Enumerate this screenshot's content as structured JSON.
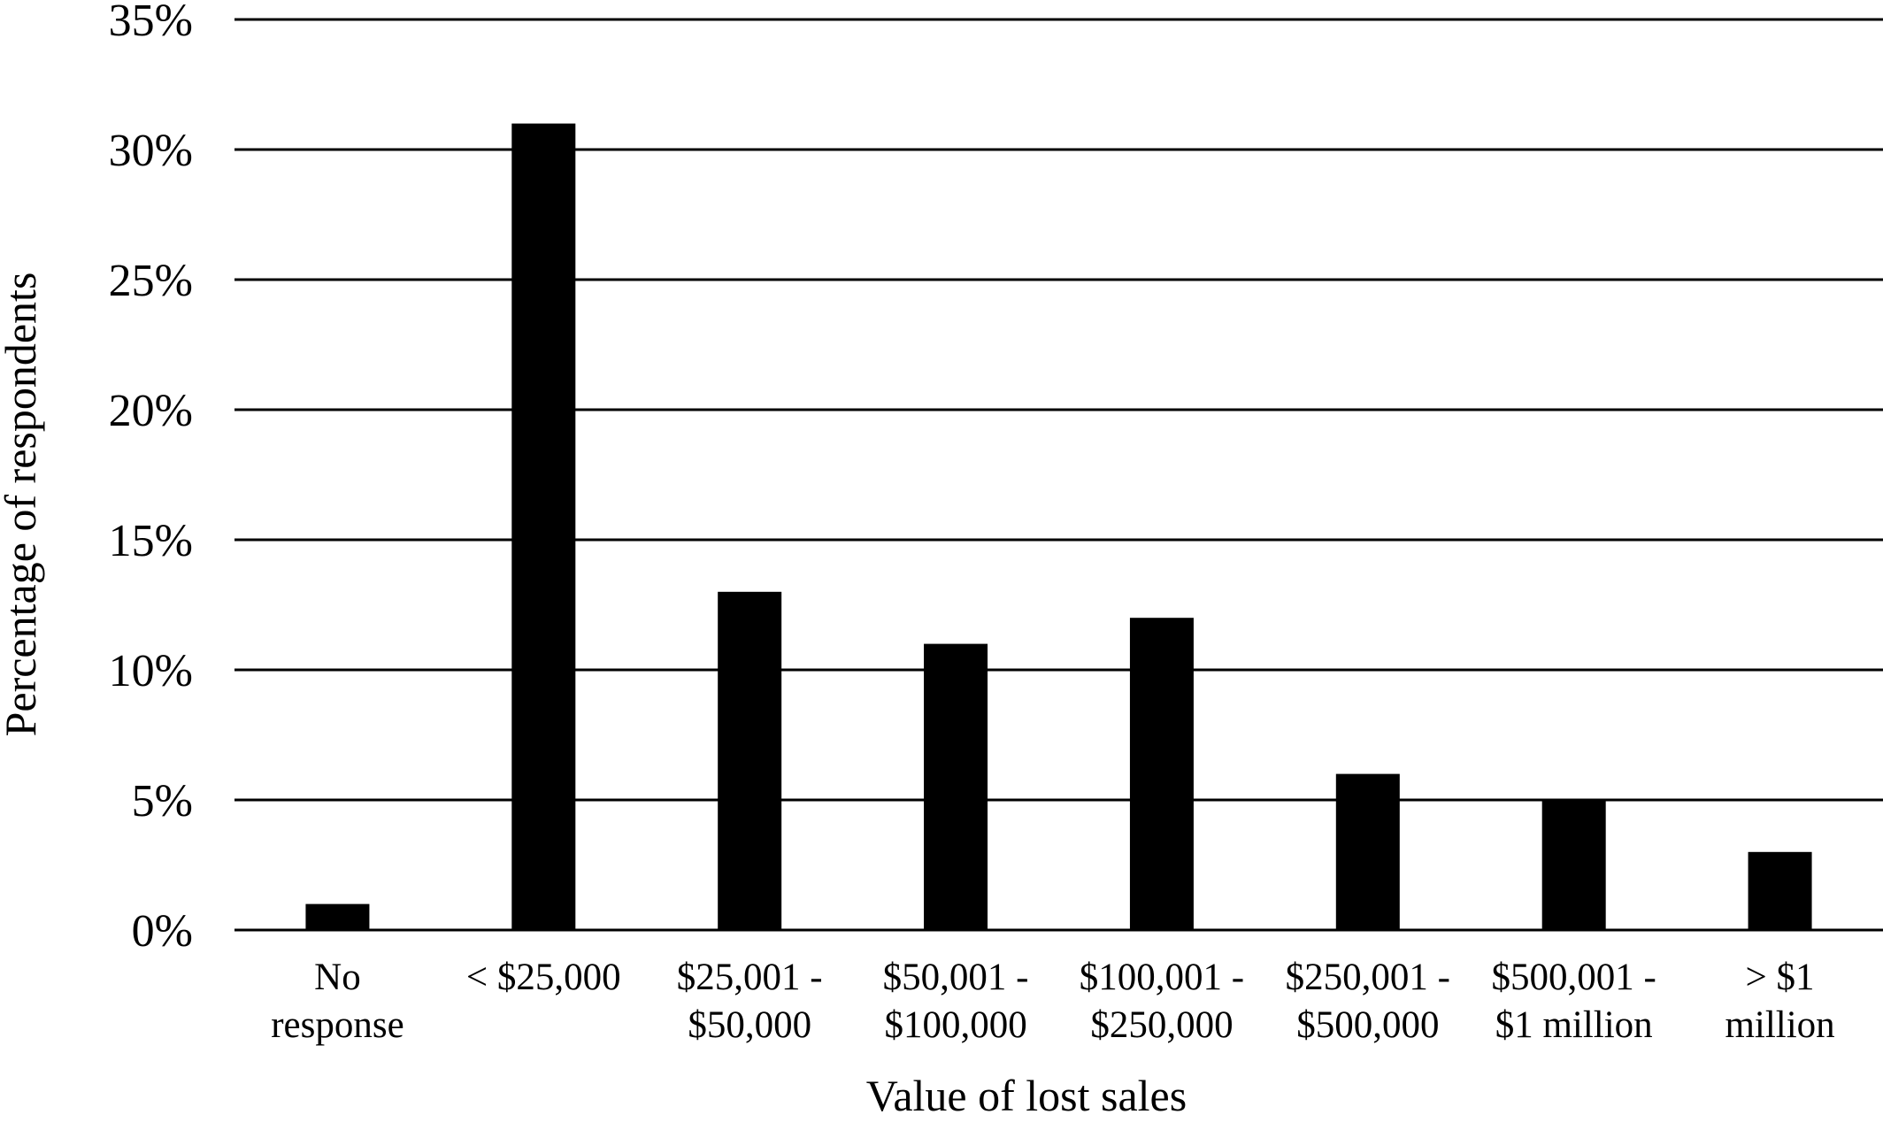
{
  "chart_data": {
    "type": "bar",
    "title": "",
    "xlabel": "Value of lost sales",
    "ylabel": "Percentage of respondents",
    "categories": [
      [
        "No",
        "response"
      ],
      [
        "< $25,000"
      ],
      [
        "$25,001 -",
        "$50,000"
      ],
      [
        "$50,001 -",
        "$100,000"
      ],
      [
        "$100,001 -",
        "$250,000"
      ],
      [
        "$250,001 -",
        "$500,000"
      ],
      [
        "$500,001 -",
        "$1 million"
      ],
      [
        "> $1",
        "million"
      ]
    ],
    "values": [
      1,
      31,
      13,
      11,
      12,
      6,
      5,
      3
    ],
    "ylim": [
      0,
      35
    ],
    "yticks": [
      0,
      5,
      10,
      15,
      20,
      25,
      30,
      35
    ],
    "ytick_labels": [
      "0%",
      "5%",
      "10%",
      "15%",
      "20%",
      "25%",
      "30%",
      "35%"
    ],
    "grid": true,
    "bar_color": "#000000",
    "legend": "none"
  }
}
